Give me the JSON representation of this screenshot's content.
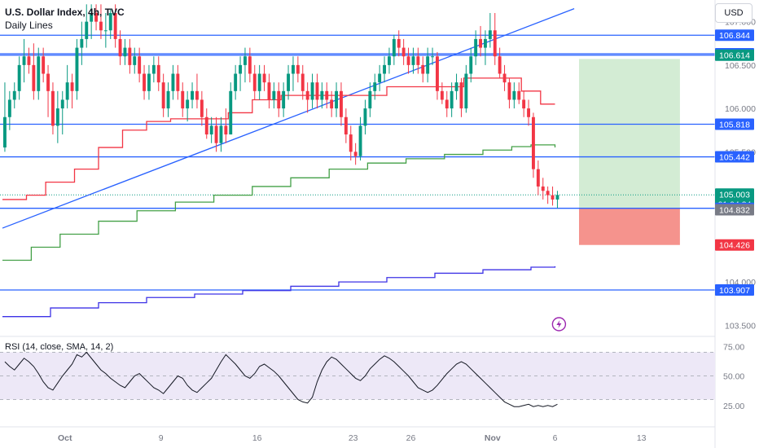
{
  "header": {
    "title": "U.S. Dollar Index, 4h, TVC",
    "subtitle": "Daily Lines",
    "currency": "USD"
  },
  "rsi_label": "RSI (14, close, SMA, 14, 2)",
  "colors": {
    "up": "#089981",
    "down": "#f23645",
    "hline": "#2962ff",
    "red_ma": "#f23645",
    "green_ma": "#43a047",
    "blue_ma": "#3d32e6",
    "target_zone": "#d3ecd4",
    "stop_zone": "#f5938d",
    "rsi": "#131722",
    "rsi_band": "#ede8f7"
  },
  "chart_data": [
    {
      "type": "candlestick",
      "title": "",
      "x_tick_labels": [
        "Oct",
        "9",
        "16",
        "23",
        "26",
        "Nov",
        "6",
        "13"
      ],
      "y_tick_labels": [
        "107.000",
        "106.500",
        "106.000",
        "105.500",
        "104.000",
        "103.500"
      ],
      "ylim": [
        103.4,
        107.25
      ],
      "horizontal_levels": [
        106.844,
        106.63,
        106.614,
        105.818,
        105.442,
        104.849,
        103.907
      ],
      "price_tags": [
        {
          "label": "106.844",
          "value": 106.844,
          "color": "#2962ff"
        },
        {
          "label": "106.630",
          "value": 106.63,
          "color": "#2962ff"
        },
        {
          "label": "106.614",
          "value": 106.614,
          "color": "#089981"
        },
        {
          "label": "105.818",
          "value": 105.818,
          "color": "#2962ff"
        },
        {
          "label": "105.442",
          "value": 105.442,
          "color": "#2962ff"
        },
        {
          "label": "105.003",
          "value": 105.003,
          "color": "#089981",
          "sub": "01:04:34"
        },
        {
          "label": "104.849",
          "value": 104.849,
          "color": "#2962ff"
        },
        {
          "label": "104.832",
          "value": 104.832,
          "color": "#787b86"
        },
        {
          "label": "104.426",
          "value": 104.426,
          "color": "#f23645"
        },
        {
          "label": "103.907",
          "value": 103.907,
          "color": "#2962ff"
        }
      ],
      "last_close": 105.003,
      "trendline": [
        [
          0,
          104.62
        ],
        [
          119,
          107.15
        ]
      ],
      "position": {
        "entry": 104.849,
        "target": 106.57,
        "stop": 104.426,
        "start": 120,
        "end": 141
      },
      "ohlc": [
        [
          0,
          105.55,
          106.3,
          105.5,
          105.9
        ],
        [
          1,
          105.9,
          106.2,
          105.75,
          106.1
        ],
        [
          2,
          106.1,
          106.3,
          106.0,
          106.2
        ],
        [
          3,
          106.2,
          106.6,
          106.1,
          106.5
        ],
        [
          4,
          106.5,
          106.8,
          106.3,
          106.6
        ],
        [
          5,
          106.6,
          106.7,
          106.4,
          106.5
        ],
        [
          6,
          106.5,
          106.75,
          106.1,
          106.2
        ],
        [
          7,
          106.2,
          106.7,
          106.1,
          106.6
        ],
        [
          8,
          106.6,
          106.7,
          106.3,
          106.4
        ],
        [
          9,
          106.4,
          106.5,
          105.9,
          106.2
        ],
        [
          10,
          106.2,
          106.3,
          105.7,
          105.8
        ],
        [
          11,
          105.8,
          106.2,
          105.6,
          106.0
        ],
        [
          12,
          106.0,
          106.2,
          105.7,
          106.1
        ],
        [
          13,
          106.1,
          106.5,
          106.0,
          106.3
        ],
        [
          14,
          106.3,
          106.4,
          106.0,
          106.2
        ],
        [
          15,
          106.2,
          106.8,
          106.1,
          106.7
        ],
        [
          16,
          106.7,
          107.0,
          106.5,
          106.8
        ],
        [
          17,
          106.8,
          107.2,
          106.7,
          107.0
        ],
        [
          18,
          107.0,
          107.2,
          106.8,
          107.1
        ],
        [
          19,
          107.1,
          107.2,
          106.9,
          107.0
        ],
        [
          20,
          107.0,
          107.2,
          106.8,
          106.9
        ],
        [
          21,
          106.9,
          107.1,
          106.7,
          106.9
        ],
        [
          22,
          106.9,
          107.15,
          106.8,
          107.1
        ],
        [
          23,
          107.1,
          107.2,
          106.7,
          106.8
        ],
        [
          24,
          106.8,
          106.9,
          106.5,
          106.6
        ],
        [
          25,
          106.6,
          106.8,
          106.5,
          106.7
        ],
        [
          26,
          106.7,
          106.8,
          106.4,
          106.5
        ],
        [
          27,
          106.5,
          106.7,
          106.4,
          106.6
        ],
        [
          28,
          106.6,
          106.7,
          106.3,
          106.4
        ],
        [
          29,
          106.4,
          106.5,
          106.1,
          106.2
        ],
        [
          30,
          106.2,
          106.5,
          106.1,
          106.4
        ],
        [
          31,
          106.4,
          106.6,
          106.3,
          106.5
        ],
        [
          32,
          106.5,
          106.6,
          106.2,
          106.3
        ],
        [
          33,
          106.3,
          106.4,
          105.9,
          106.0
        ],
        [
          34,
          106.0,
          106.3,
          105.9,
          106.2
        ],
        [
          35,
          106.2,
          106.5,
          106.1,
          106.4
        ],
        [
          36,
          106.4,
          106.5,
          106.1,
          106.2
        ],
        [
          37,
          106.2,
          106.3,
          105.9,
          106.0
        ],
        [
          38,
          106.0,
          106.2,
          105.85,
          106.1
        ],
        [
          39,
          106.1,
          106.3,
          106.0,
          106.2
        ],
        [
          40,
          106.2,
          106.4,
          106.0,
          106.1
        ],
        [
          41,
          106.1,
          106.2,
          105.8,
          105.9
        ],
        [
          42,
          105.9,
          106.0,
          105.65,
          105.7
        ],
        [
          43,
          105.7,
          105.9,
          105.6,
          105.8
        ],
        [
          44,
          105.8,
          105.9,
          105.5,
          105.6
        ],
        [
          45,
          105.6,
          105.9,
          105.5,
          105.8
        ],
        [
          46,
          105.8,
          106.0,
          105.6,
          105.7
        ],
        [
          47,
          105.7,
          106.3,
          105.7,
          106.2
        ],
        [
          48,
          106.2,
          106.5,
          106.1,
          106.4
        ],
        [
          49,
          106.4,
          106.6,
          106.2,
          106.5
        ],
        [
          50,
          106.5,
          106.7,
          106.3,
          106.6
        ],
        [
          51,
          106.6,
          106.7,
          106.3,
          106.4
        ],
        [
          52,
          106.4,
          106.5,
          106.1,
          106.2
        ],
        [
          53,
          106.2,
          106.5,
          106.1,
          106.4
        ],
        [
          54,
          106.4,
          106.5,
          106.2,
          106.3
        ],
        [
          55,
          106.3,
          106.4,
          106.0,
          106.1
        ],
        [
          56,
          106.1,
          106.3,
          106.0,
          106.2
        ],
        [
          57,
          106.2,
          106.3,
          105.9,
          106.0
        ],
        [
          58,
          106.0,
          106.3,
          105.9,
          106.2
        ],
        [
          59,
          106.2,
          106.5,
          106.1,
          106.4
        ],
        [
          60,
          106.4,
          106.6,
          106.2,
          106.5
        ],
        [
          61,
          106.5,
          106.6,
          106.3,
          106.4
        ],
        [
          62,
          106.4,
          106.5,
          106.1,
          106.2
        ],
        [
          63,
          106.2,
          106.3,
          105.95,
          106.1
        ],
        [
          64,
          106.1,
          106.4,
          106.0,
          106.3
        ],
        [
          65,
          106.3,
          106.4,
          106.0,
          106.1
        ],
        [
          66,
          106.1,
          106.3,
          106.0,
          106.2
        ],
        [
          67,
          106.2,
          106.3,
          106.0,
          106.1
        ],
        [
          68,
          106.1,
          106.2,
          105.9,
          106.0
        ],
        [
          69,
          106.0,
          106.3,
          105.9,
          106.2
        ],
        [
          70,
          106.2,
          106.3,
          105.8,
          105.9
        ],
        [
          71,
          105.9,
          106.0,
          105.6,
          105.7
        ],
        [
          72,
          105.7,
          105.8,
          105.4,
          105.5
        ],
        [
          73,
          105.5,
          105.6,
          105.35,
          105.45
        ],
        [
          74,
          105.45,
          105.9,
          105.4,
          105.8
        ],
        [
          75,
          105.8,
          106.1,
          105.7,
          106.0
        ],
        [
          76,
          106.0,
          106.3,
          105.9,
          106.2
        ],
        [
          77,
          106.2,
          106.4,
          106.1,
          106.3
        ],
        [
          78,
          106.3,
          106.5,
          106.2,
          106.4
        ],
        [
          79,
          106.4,
          106.6,
          106.3,
          106.5
        ],
        [
          80,
          106.5,
          106.7,
          106.4,
          106.6
        ],
        [
          81,
          106.6,
          106.85,
          106.5,
          106.8
        ],
        [
          82,
          106.8,
          106.9,
          106.6,
          106.7
        ],
        [
          83,
          106.7,
          106.8,
          106.5,
          106.6
        ],
        [
          84,
          106.6,
          106.7,
          106.4,
          106.5
        ],
        [
          85,
          106.5,
          106.7,
          106.4,
          106.6
        ],
        [
          86,
          106.6,
          106.7,
          106.4,
          106.5
        ],
        [
          87,
          106.5,
          106.6,
          106.3,
          106.4
        ],
        [
          88,
          106.4,
          106.7,
          106.3,
          106.6
        ],
        [
          89,
          106.6,
          106.7,
          106.5,
          106.6
        ],
        [
          90,
          106.6,
          106.65,
          106.1,
          106.2
        ],
        [
          91,
          106.2,
          106.3,
          106.05,
          106.1
        ],
        [
          92,
          106.1,
          106.2,
          105.9,
          106.0
        ],
        [
          93,
          106.0,
          106.3,
          105.9,
          106.2
        ],
        [
          94,
          106.2,
          106.4,
          106.1,
          106.3
        ],
        [
          95,
          106.3,
          106.35,
          105.9,
          106.0
        ],
        [
          96,
          106.0,
          106.5,
          105.95,
          106.4
        ],
        [
          97,
          106.4,
          106.7,
          106.3,
          106.6
        ],
        [
          98,
          106.6,
          106.9,
          106.5,
          106.8
        ],
        [
          99,
          106.8,
          106.95,
          106.6,
          106.7
        ],
        [
          100,
          106.7,
          106.9,
          106.5,
          106.8
        ],
        [
          101,
          106.8,
          107.1,
          106.7,
          106.9
        ],
        [
          102,
          106.9,
          107.1,
          106.5,
          106.6
        ],
        [
          103,
          106.6,
          106.7,
          106.35,
          106.4
        ],
        [
          104,
          106.4,
          106.5,
          106.2,
          106.3
        ],
        [
          105,
          106.3,
          106.35,
          106.0,
          106.1
        ],
        [
          106,
          106.1,
          106.3,
          106.0,
          106.2
        ],
        [
          107,
          106.2,
          106.3,
          106.05,
          106.1
        ],
        [
          108,
          106.1,
          106.2,
          105.9,
          106.0
        ],
        [
          109,
          106.0,
          106.1,
          105.8,
          105.9
        ],
        [
          110,
          105.9,
          105.95,
          105.2,
          105.3
        ],
        [
          111,
          105.3,
          105.4,
          105.0,
          105.1
        ],
        [
          112,
          105.1,
          105.2,
          104.95,
          105.05
        ],
        [
          113,
          105.05,
          105.1,
          104.9,
          105.0
        ],
        [
          114,
          105.0,
          105.1,
          104.88,
          104.95
        ],
        [
          115,
          104.95,
          105.05,
          104.85,
          105.003
        ]
      ],
      "series": [
        {
          "name": "",
          "color": "#f23645",
          "points": [
            [
              0,
              104.95
            ],
            [
              5,
              105.0
            ],
            [
              9,
              105.15
            ],
            [
              15,
              105.3
            ],
            [
              20,
              105.55
            ],
            [
              25,
              105.75
            ],
            [
              30,
              105.85
            ],
            [
              35,
              105.88
            ],
            [
              42,
              105.88
            ],
            [
              47,
              105.95
            ],
            [
              52,
              106.1
            ],
            [
              58,
              106.15
            ],
            [
              66,
              106.15
            ],
            [
              72,
              106.15
            ],
            [
              80,
              106.25
            ],
            [
              88,
              106.25
            ],
            [
              96,
              106.35
            ],
            [
              104,
              106.35
            ],
            [
              108,
              106.2
            ],
            [
              112,
              106.05
            ],
            [
              115,
              106.05
            ]
          ]
        },
        {
          "name": "",
          "color": "#43a047",
          "points": [
            [
              0,
              104.25
            ],
            [
              6,
              104.4
            ],
            [
              12,
              104.55
            ],
            [
              20,
              104.7
            ],
            [
              28,
              104.82
            ],
            [
              36,
              104.92
            ],
            [
              44,
              105.0
            ],
            [
              52,
              105.1
            ],
            [
              60,
              105.2
            ],
            [
              68,
              105.3
            ],
            [
              76,
              105.37
            ],
            [
              84,
              105.42
            ],
            [
              92,
              105.47
            ],
            [
              100,
              105.52
            ],
            [
              106,
              105.56
            ],
            [
              110,
              105.58
            ],
            [
              115,
              105.55
            ]
          ]
        },
        {
          "name": "",
          "color": "#3d32e6",
          "points": [
            [
              0,
              103.6
            ],
            [
              10,
              103.7
            ],
            [
              20,
              103.76
            ],
            [
              30,
              103.82
            ],
            [
              40,
              103.86
            ],
            [
              50,
              103.9
            ],
            [
              60,
              103.95
            ],
            [
              70,
              104.0
            ],
            [
              80,
              104.05
            ],
            [
              90,
              104.1
            ],
            [
              100,
              104.14
            ],
            [
              110,
              104.17
            ],
            [
              115,
              104.18
            ]
          ]
        }
      ]
    },
    {
      "type": "line",
      "title": "RSI (14, close, SMA, 14, 2)",
      "y_tick_labels": [
        "75.00",
        "50.00",
        "25.00"
      ],
      "ylim": [
        20,
        80
      ],
      "band": [
        30,
        70
      ],
      "values": [
        62,
        58,
        55,
        60,
        65,
        62,
        58,
        52,
        45,
        40,
        38,
        44,
        50,
        55,
        60,
        68,
        66,
        70,
        65,
        60,
        55,
        52,
        48,
        45,
        42,
        40,
        45,
        50,
        52,
        48,
        44,
        40,
        38,
        35,
        40,
        45,
        50,
        48,
        42,
        38,
        36,
        40,
        44,
        48,
        55,
        62,
        68,
        64,
        60,
        55,
        50,
        48,
        52,
        58,
        60,
        57,
        54,
        50,
        45,
        40,
        35,
        30,
        28,
        27,
        32,
        45,
        55,
        62,
        66,
        64,
        60,
        56,
        52,
        48,
        46,
        50,
        56,
        60,
        64,
        67,
        65,
        62,
        58,
        54,
        50,
        45,
        40,
        38,
        36,
        38,
        42,
        47,
        52,
        56,
        60,
        62,
        60,
        56,
        52,
        48,
        44,
        40,
        36,
        32,
        28,
        26,
        24,
        24,
        25,
        26,
        24,
        25,
        24,
        25,
        24,
        26
      ]
    }
  ]
}
